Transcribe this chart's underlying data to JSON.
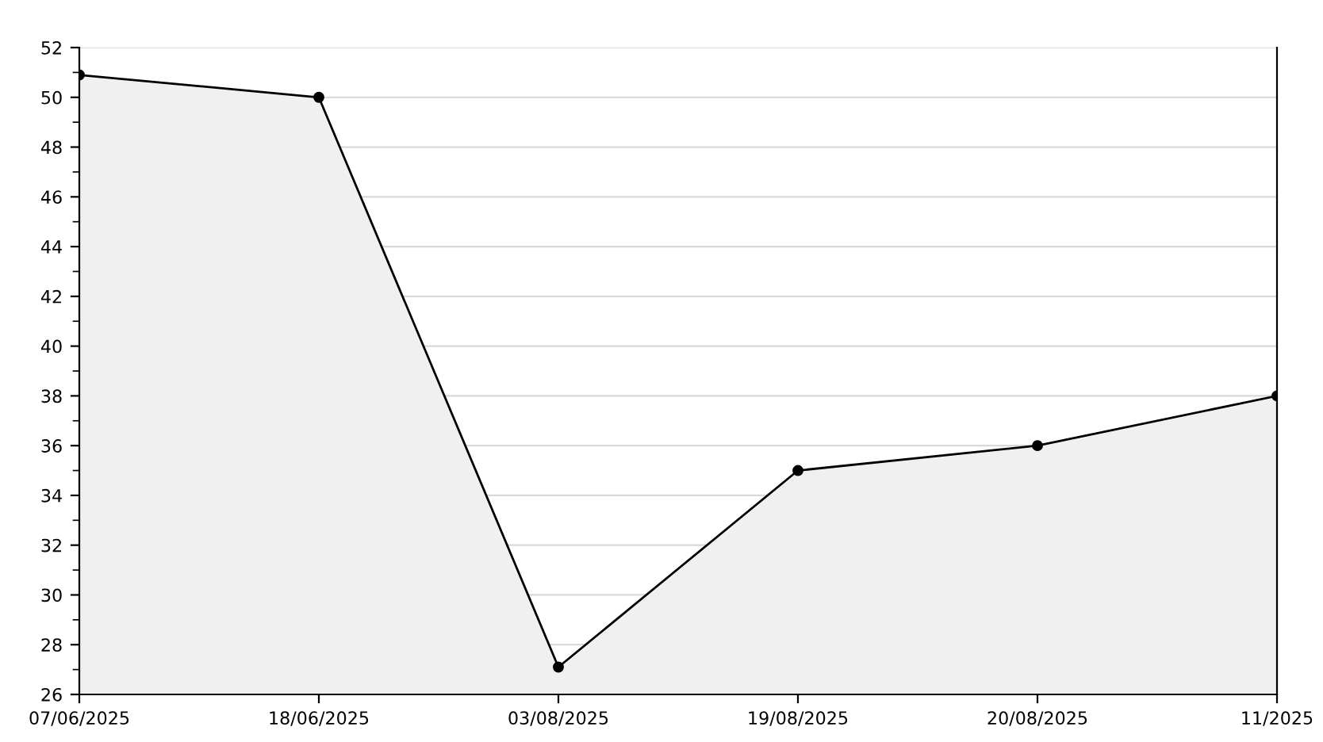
{
  "chart_data": {
    "type": "area",
    "categories": [
      "07/06/2025",
      "18/06/2025",
      "03/08/2025",
      "19/08/2025",
      "20/08/2025",
      "11/2025"
    ],
    "series": [
      {
        "color": "#f0f0f0",
        "values": [
          50.9,
          50,
          27.1,
          35,
          36,
          38
        ]
      }
    ],
    "ylim": [
      26,
      52
    ],
    "yticks": [
      26,
      {
        "value": 27,
        "label": null
      },
      28,
      {
        "value": 29,
        "label": null
      },
      30,
      {
        "value": 31,
        "label": null
      },
      32,
      {
        "value": 33,
        "label": null
      },
      34,
      {
        "value": 35,
        "label": null
      },
      36,
      {
        "value": 37,
        "label": null
      },
      38,
      {
        "value": 39,
        "label": null
      },
      40,
      {
        "value": 41,
        "label": null
      },
      42,
      {
        "value": 43,
        "label": null
      },
      44,
      {
        "value": 45,
        "label": null
      },
      46,
      {
        "value": 47,
        "label": null
      },
      48,
      {
        "value": 49,
        "label": null
      },
      50,
      {
        "value": 51,
        "label": null
      },
      52
    ],
    "grid": "y",
    "marker": "circle",
    "line_style": "solid",
    "legend": false
  }
}
